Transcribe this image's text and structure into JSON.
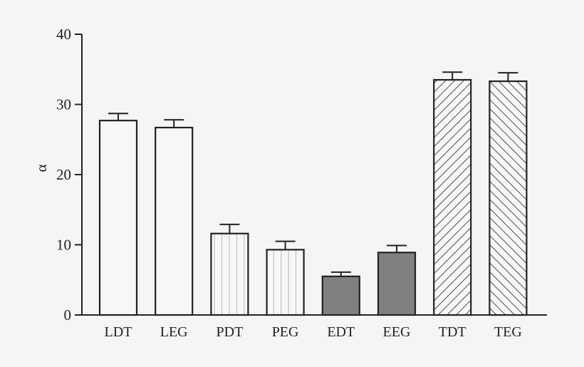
{
  "chart_data": {
    "type": "bar",
    "title": "",
    "xlabel": "",
    "ylabel": "α",
    "ylim": [
      0,
      40
    ],
    "yticks": [
      0,
      10,
      20,
      30,
      40
    ],
    "grid": false,
    "legend": null,
    "categories": [
      "LDT",
      "LEG",
      "PDT",
      "PEG",
      "EDT",
      "EEG",
      "TDT",
      "TEG"
    ],
    "values": [
      27.7,
      26.7,
      11.6,
      9.3,
      5.5,
      8.9,
      33.5,
      33.3
    ],
    "errors": [
      1.0,
      1.1,
      1.3,
      1.2,
      0.6,
      1.0,
      1.1,
      1.2
    ],
    "fills": [
      "white",
      "white",
      "vertical-lines",
      "vertical-lines",
      "gray",
      "gray",
      "back-diagonal-hatch",
      "forward-diagonal-hatch"
    ]
  },
  "axis": {
    "ylabel": "α",
    "yticks": [
      "0",
      "10",
      "20",
      "30",
      "40"
    ]
  },
  "colors": {
    "background": "#f5f5f5",
    "axis": "#222222",
    "gray_fill": "#808080",
    "stripe": "#aaaaaa"
  }
}
